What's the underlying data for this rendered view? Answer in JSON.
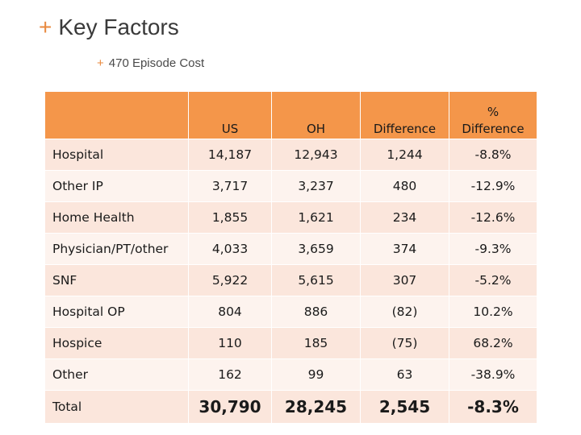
{
  "title": {
    "plus": "+",
    "text": "Key Factors"
  },
  "subtitle": {
    "plus": "+",
    "text": "470 Episode Cost"
  },
  "table": {
    "headers": [
      "",
      "US",
      "OH",
      "Difference",
      "%\nDifference"
    ],
    "header_percent_line1": "%",
    "header_percent_line2": "Difference",
    "rows": [
      {
        "label": "Hospital",
        "us": "14,187",
        "oh": "12,943",
        "diff": "1,244",
        "pct": "-8.8%"
      },
      {
        "label": "Other IP",
        "us": "3,717",
        "oh": "3,237",
        "diff": "480",
        "pct": "-12.9%"
      },
      {
        "label": "Home Health",
        "us": "1,855",
        "oh": "1,621",
        "diff": "234",
        "pct": "-12.6%"
      },
      {
        "label": "Physician/PT/other",
        "us": "4,033",
        "oh": "3,659",
        "diff": "374",
        "pct": "-9.3%"
      },
      {
        "label": "SNF",
        "us": "5,922",
        "oh": "5,615",
        "diff": "307",
        "pct": "-5.2%"
      },
      {
        "label": "Hospital OP",
        "us": "804",
        "oh": "886",
        "diff": "(82)",
        "pct": "10.2%"
      },
      {
        "label": "Hospice",
        "us": "110",
        "oh": "185",
        "diff": "(75)",
        "pct": "68.2%"
      },
      {
        "label": "Other",
        "us": "162",
        "oh": "99",
        "diff": "63",
        "pct": "-38.9%"
      }
    ],
    "total": {
      "label": "Total",
      "us": "30,790",
      "oh": "28,245",
      "diff": "2,545",
      "pct": "-8.3%"
    }
  },
  "colors": {
    "accent": "#e8893e",
    "header_bg": "#f4964a",
    "row_odd_bg": "#fbe6dc",
    "row_even_bg": "#fdf3ee"
  }
}
